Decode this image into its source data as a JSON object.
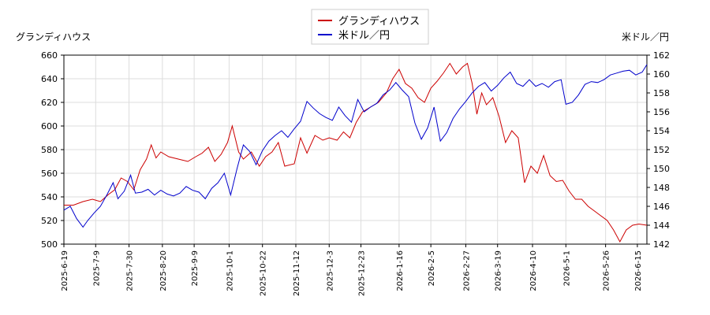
{
  "chart_data": {
    "type": "line",
    "y1label": "グランディハウス",
    "y2label": "米ドル／円",
    "y1lim": [
      500,
      660
    ],
    "y1ticks": [
      500,
      520,
      540,
      560,
      580,
      600,
      620,
      640,
      660
    ],
    "y2lim": [
      142,
      162
    ],
    "y2ticks": [
      142,
      144,
      146,
      148,
      150,
      152,
      154,
      156,
      158,
      160,
      162
    ],
    "xlim": [
      "2025-06-19",
      "2026-06-21"
    ],
    "xticks": [
      "2025-6-19",
      "2025-7-9",
      "2025-7-30",
      "2025-8-20",
      "2025-9-9",
      "2025-10-1",
      "2025-10-22",
      "2025-11-12",
      "2025-12-3",
      "2025-12-23",
      "2026-1-16",
      "2026-2-5",
      "2026-2-27",
      "2026-3-19",
      "2026-4-10",
      "2026-5-1",
      "2026-5-26",
      "2026-6-15"
    ],
    "grid": true,
    "legend_position": "top-center",
    "series": [
      {
        "name": "グランディハウス",
        "color": "#cc0000",
        "axis": "left",
        "points": [
          [
            "2025-06-19",
            533
          ],
          [
            "2025-06-25",
            533
          ],
          [
            "2025-07-01",
            536
          ],
          [
            "2025-07-07",
            538
          ],
          [
            "2025-07-12",
            536
          ],
          [
            "2025-07-17",
            542
          ],
          [
            "2025-07-21",
            546
          ],
          [
            "2025-07-25",
            556
          ],
          [
            "2025-07-29",
            553
          ],
          [
            "2025-08-02",
            546
          ],
          [
            "2025-08-06",
            563
          ],
          [
            "2025-08-10",
            572
          ],
          [
            "2025-08-13",
            584
          ],
          [
            "2025-08-16",
            573
          ],
          [
            "2025-08-19",
            578
          ],
          [
            "2025-08-24",
            574
          ],
          [
            "2025-08-30",
            572
          ],
          [
            "2025-09-05",
            570
          ],
          [
            "2025-09-10",
            574
          ],
          [
            "2025-09-14",
            577
          ],
          [
            "2025-09-18",
            582
          ],
          [
            "2025-09-22",
            570
          ],
          [
            "2025-09-26",
            576
          ],
          [
            "2025-09-30",
            586
          ],
          [
            "2025-10-03",
            600
          ],
          [
            "2025-10-07",
            578
          ],
          [
            "2025-10-10",
            572
          ],
          [
            "2025-10-15",
            578
          ],
          [
            "2025-10-20",
            566
          ],
          [
            "2025-10-24",
            574
          ],
          [
            "2025-10-28",
            578
          ],
          [
            "2025-11-01",
            586
          ],
          [
            "2025-11-05",
            566
          ],
          [
            "2025-11-11",
            568
          ],
          [
            "2025-11-15",
            590
          ],
          [
            "2025-11-19",
            577
          ],
          [
            "2025-11-24",
            592
          ],
          [
            "2025-11-29",
            588
          ],
          [
            "2025-12-03",
            590
          ],
          [
            "2025-12-08",
            588
          ],
          [
            "2025-12-12",
            595
          ],
          [
            "2025-12-16",
            590
          ],
          [
            "2025-12-20",
            603
          ],
          [
            "2025-12-24",
            612
          ],
          [
            "2025-12-29",
            616
          ],
          [
            "2026-01-03",
            620
          ],
          [
            "2026-01-08",
            628
          ],
          [
            "2026-01-12",
            640
          ],
          [
            "2026-01-16",
            648
          ],
          [
            "2026-01-20",
            636
          ],
          [
            "2026-01-24",
            632
          ],
          [
            "2026-01-28",
            624
          ],
          [
            "2026-02-01",
            620
          ],
          [
            "2026-02-05",
            632
          ],
          [
            "2026-02-09",
            638
          ],
          [
            "2026-02-13",
            645
          ],
          [
            "2026-02-17",
            653
          ],
          [
            "2026-02-21",
            644
          ],
          [
            "2026-02-25",
            650
          ],
          [
            "2026-02-28",
            653
          ],
          [
            "2026-03-03",
            636
          ],
          [
            "2026-03-06",
            610
          ],
          [
            "2026-03-09",
            628
          ],
          [
            "2026-03-12",
            618
          ],
          [
            "2026-03-16",
            624
          ],
          [
            "2026-03-20",
            608
          ],
          [
            "2026-03-24",
            586
          ],
          [
            "2026-03-28",
            596
          ],
          [
            "2026-04-01",
            590
          ],
          [
            "2026-04-05",
            552
          ],
          [
            "2026-04-09",
            566
          ],
          [
            "2026-04-13",
            560
          ],
          [
            "2026-04-17",
            575
          ],
          [
            "2026-04-21",
            558
          ],
          [
            "2026-04-25",
            553
          ],
          [
            "2026-04-29",
            554
          ],
          [
            "2026-05-03",
            545
          ],
          [
            "2026-05-07",
            538
          ],
          [
            "2026-05-11",
            538
          ],
          [
            "2026-05-15",
            532
          ],
          [
            "2026-05-19",
            528
          ],
          [
            "2026-05-23",
            524
          ],
          [
            "2026-05-27",
            520
          ],
          [
            "2026-05-31",
            512
          ],
          [
            "2026-06-04",
            502
          ],
          [
            "2026-06-08",
            512
          ],
          [
            "2026-06-12",
            516
          ],
          [
            "2026-06-16",
            517
          ],
          [
            "2026-06-21",
            516
          ]
        ]
      },
      {
        "name": "米ドル／円",
        "color": "#0000cc",
        "axis": "right",
        "points": [
          [
            "2025-06-19",
            145.6
          ],
          [
            "2025-06-23",
            146.0
          ],
          [
            "2025-06-27",
            144.7
          ],
          [
            "2025-07-01",
            143.8
          ],
          [
            "2025-07-04",
            144.5
          ],
          [
            "2025-07-08",
            145.3
          ],
          [
            "2025-07-12",
            146.0
          ],
          [
            "2025-07-16",
            147.2
          ],
          [
            "2025-07-20",
            148.5
          ],
          [
            "2025-07-23",
            146.8
          ],
          [
            "2025-07-27",
            147.6
          ],
          [
            "2025-07-31",
            149.3
          ],
          [
            "2025-08-03",
            147.4
          ],
          [
            "2025-08-07",
            147.5
          ],
          [
            "2025-08-11",
            147.8
          ],
          [
            "2025-08-15",
            147.2
          ],
          [
            "2025-08-19",
            147.7
          ],
          [
            "2025-08-23",
            147.3
          ],
          [
            "2025-08-27",
            147.1
          ],
          [
            "2025-08-31",
            147.4
          ],
          [
            "2025-09-04",
            148.1
          ],
          [
            "2025-09-08",
            147.7
          ],
          [
            "2025-09-12",
            147.5
          ],
          [
            "2025-09-16",
            146.8
          ],
          [
            "2025-09-20",
            147.9
          ],
          [
            "2025-09-24",
            148.5
          ],
          [
            "2025-09-28",
            149.5
          ],
          [
            "2025-10-02",
            147.2
          ],
          [
            "2025-10-06",
            150.0
          ],
          [
            "2025-10-10",
            152.5
          ],
          [
            "2025-10-14",
            151.8
          ],
          [
            "2025-10-18",
            150.4
          ],
          [
            "2025-10-22",
            151.9
          ],
          [
            "2025-10-26",
            152.9
          ],
          [
            "2025-10-30",
            153.5
          ],
          [
            "2025-11-03",
            154.0
          ],
          [
            "2025-11-07",
            153.3
          ],
          [
            "2025-11-11",
            154.2
          ],
          [
            "2025-11-15",
            155.0
          ],
          [
            "2025-11-19",
            157.1
          ],
          [
            "2025-11-23",
            156.4
          ],
          [
            "2025-11-27",
            155.8
          ],
          [
            "2025-12-01",
            155.4
          ],
          [
            "2025-12-05",
            155.1
          ],
          [
            "2025-12-09",
            156.5
          ],
          [
            "2025-12-13",
            155.6
          ],
          [
            "2025-12-17",
            154.9
          ],
          [
            "2025-12-21",
            157.3
          ],
          [
            "2025-12-25",
            156.0
          ],
          [
            "2025-12-29",
            156.5
          ],
          [
            "2026-01-02",
            156.9
          ],
          [
            "2026-01-06",
            157.8
          ],
          [
            "2026-01-10",
            158.3
          ],
          [
            "2026-01-14",
            159.1
          ],
          [
            "2026-01-18",
            158.3
          ],
          [
            "2026-01-22",
            157.6
          ],
          [
            "2026-01-26",
            154.8
          ],
          [
            "2026-01-30",
            153.1
          ],
          [
            "2026-02-03",
            154.3
          ],
          [
            "2026-02-07",
            156.5
          ],
          [
            "2026-02-11",
            152.9
          ],
          [
            "2026-02-15",
            153.8
          ],
          [
            "2026-02-19",
            155.3
          ],
          [
            "2026-02-23",
            156.3
          ],
          [
            "2026-02-27",
            157.1
          ],
          [
            "2026-03-03",
            158.0
          ],
          [
            "2026-03-07",
            158.7
          ],
          [
            "2026-03-11",
            159.1
          ],
          [
            "2026-03-15",
            158.2
          ],
          [
            "2026-03-19",
            158.8
          ],
          [
            "2026-03-23",
            159.6
          ],
          [
            "2026-03-27",
            160.2
          ],
          [
            "2026-03-31",
            159.0
          ],
          [
            "2026-04-04",
            158.7
          ],
          [
            "2026-04-08",
            159.4
          ],
          [
            "2026-04-12",
            158.7
          ],
          [
            "2026-04-16",
            159.0
          ],
          [
            "2026-04-20",
            158.6
          ],
          [
            "2026-04-24",
            159.2
          ],
          [
            "2026-04-28",
            159.4
          ],
          [
            "2026-05-01",
            156.8
          ],
          [
            "2026-05-05",
            157.0
          ],
          [
            "2026-05-09",
            157.8
          ],
          [
            "2026-05-13",
            158.9
          ],
          [
            "2026-05-17",
            159.2
          ],
          [
            "2026-05-21",
            159.1
          ],
          [
            "2026-05-25",
            159.4
          ],
          [
            "2026-05-29",
            159.9
          ],
          [
            "2026-06-02",
            160.1
          ],
          [
            "2026-06-06",
            160.3
          ],
          [
            "2026-06-10",
            160.4
          ],
          [
            "2026-06-14",
            159.9
          ],
          [
            "2026-06-18",
            160.2
          ],
          [
            "2026-06-21",
            161.0
          ]
        ]
      }
    ]
  }
}
